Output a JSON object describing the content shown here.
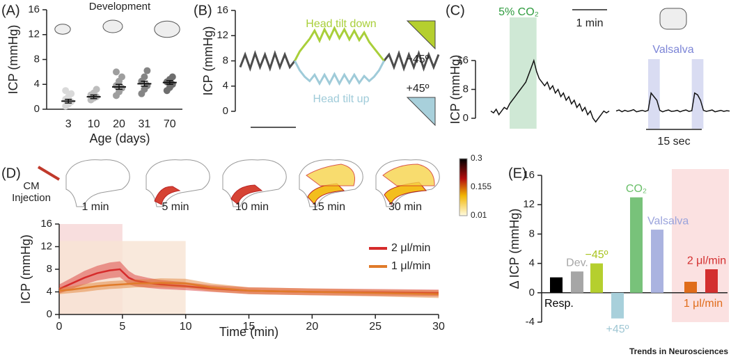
{
  "chart_data": [
    {
      "type": "dot",
      "panel": "(A)",
      "title": "Development",
      "xlabel": "Age (days)",
      "ylabel": "ICP (mmHg)",
      "categories": [
        "3",
        "10",
        "20",
        "31",
        "70"
      ],
      "values": [
        1.3,
        2.0,
        3.6,
        4.1,
        4.3
      ],
      "errors": [
        0.3,
        0.3,
        0.4,
        0.4,
        0.3
      ],
      "points": [
        [
          0.5,
          0.8,
          1.2,
          1.6,
          2.0,
          2.5,
          3.0
        ],
        [
          1.5,
          1.8,
          2.0,
          2.3,
          2.6,
          3.2
        ],
        [
          2.2,
          2.8,
          3.4,
          3.8,
          4.5,
          5.2,
          6.0
        ],
        [
          2.5,
          3.2,
          3.8,
          4.5,
          5.2,
          6.2
        ],
        [
          3.0,
          3.5,
          4.0,
          4.4,
          4.8,
          5.2
        ]
      ],
      "point_colors": [
        "#d9d9d9",
        "#bdbdbd",
        "#9e9e9e",
        "#858585",
        "#6e6e6e"
      ],
      "ylim": [
        0,
        16
      ],
      "yticks": [
        0,
        4,
        8,
        12,
        16
      ]
    },
    {
      "type": "trace",
      "panel": "(B)",
      "ylabel": "ICP (mmHg)",
      "ylim": [
        0,
        16
      ],
      "yticks": [
        0,
        4,
        8,
        12,
        16
      ],
      "series": [
        {
          "color": "#4d4d4d",
          "values": [
            7,
            9,
            6.8,
            9.2,
            7,
            9,
            6.8,
            9.2,
            7,
            9,
            7,
            8,
            null,
            null,
            null,
            null,
            null,
            null,
            null,
            null,
            null,
            null,
            null,
            null,
            null,
            null,
            null,
            null,
            null,
            8,
            9,
            7,
            9.2,
            6.8,
            9,
            7,
            9.2,
            6.8,
            9,
            7,
            9
          ]
        },
        {
          "name": "Head tilt down",
          "color": "#a9cf3a",
          "values": [
            null,
            null,
            null,
            null,
            null,
            null,
            null,
            null,
            null,
            null,
            null,
            8,
            9.5,
            10.5,
            11.5,
            12.8,
            11.2,
            13,
            11.5,
            13.2,
            11.6,
            13,
            11.4,
            12.8,
            11.3,
            12.5,
            11,
            10,
            9,
            8,
            null,
            null,
            null,
            null,
            null,
            null,
            null,
            null,
            null,
            null,
            null
          ]
        },
        {
          "name": "Head tilt up",
          "color": "#9fcbd9",
          "values": [
            null,
            null,
            null,
            null,
            null,
            null,
            null,
            null,
            null,
            null,
            null,
            8,
            6.5,
            5.5,
            4.8,
            5.8,
            4.4,
            5.8,
            4.4,
            5.9,
            4.4,
            5.8,
            4.5,
            5.8,
            4.5,
            5.6,
            4.8,
            5.5,
            6.5,
            8,
            null,
            null,
            null,
            null,
            null,
            null,
            null,
            null,
            null,
            null,
            null
          ]
        }
      ],
      "annotations": [
        "−45º",
        "+45º"
      ]
    },
    {
      "type": "trace",
      "panel": "(C)",
      "ylabel": "ICP (mmHg)",
      "ylim": [
        0,
        16
      ],
      "yticks": [
        0,
        8,
        16
      ],
      "series": [
        {
          "name": "5% CO₂",
          "color": "#111111",
          "label_color": "#2e9b3e",
          "shade_color": "#cfe8d5",
          "shades": [
            [
              7,
              17
            ]
          ],
          "values": [
            2,
            1.5,
            2.5,
            1,
            2,
            3,
            2.5,
            4,
            5,
            6,
            7,
            8,
            9,
            10,
            12,
            14,
            16,
            13,
            11,
            10,
            9,
            10,
            8,
            9,
            7,
            8,
            6,
            7,
            5,
            6,
            4,
            5,
            3,
            4,
            2,
            3,
            1,
            2,
            0,
            -1,
            0,
            1,
            2,
            1.5,
            2
          ]
        },
        {
          "name": "Valsalva",
          "color": "#111111",
          "label_color": "#7b84d6",
          "shade_color": "#d9dcf2",
          "shades": [
            [
              11,
              15
            ],
            [
              26,
              30
            ]
          ],
          "values": [
            2,
            2.3,
            1.8,
            2.2,
            1.9,
            2.1,
            2.4,
            1.8,
            2,
            2.2,
            1.9,
            2.2,
            7,
            6,
            5,
            2.2,
            1.8,
            2.1,
            2.3,
            1.9,
            2,
            2.2,
            1.8,
            2.1,
            2.3,
            1.9,
            2.1,
            7,
            6.5,
            5,
            2.2,
            1.9,
            2.1,
            2.3,
            1.8,
            2,
            2.2,
            1.9,
            2.1,
            2
          ]
        }
      ],
      "scalebars": [
        "1 min",
        "15 sec"
      ]
    },
    {
      "type": "line",
      "panel": "(D)",
      "xlabel": "Time (min)",
      "ylabel": "ICP (mmHg)",
      "images": [
        "1 min",
        "5 min",
        "10 min",
        "15 min",
        "30 min"
      ],
      "injection_label": [
        "CM",
        "Injection"
      ],
      "colorbar_ticks": [
        0.3,
        0.155,
        0.01
      ],
      "xlim": [
        0,
        30
      ],
      "xticks": [
        0,
        5,
        10,
        15,
        20,
        25,
        30
      ],
      "ylim": [
        0,
        16
      ],
      "yticks": [
        0,
        4,
        8,
        12,
        16
      ],
      "shades": [
        {
          "xlim": [
            0,
            5
          ],
          "ylim": [
            0,
            16
          ],
          "color": "#f6d6d6"
        },
        {
          "xlim": [
            0,
            10
          ],
          "ylim": [
            0,
            13
          ],
          "color": "#f8e3d3"
        }
      ],
      "x": [
        0,
        1,
        2,
        3,
        4,
        4.8,
        5.5,
        6,
        7,
        8,
        10,
        12,
        15,
        20,
        25,
        30
      ],
      "series": [
        {
          "name": "2 μl/min",
          "color": "#d62b2b",
          "values": [
            4.5,
            5.5,
            6.5,
            7.3,
            7.8,
            8,
            6.5,
            6,
            5.6,
            5.3,
            5,
            4.6,
            4.2,
            4,
            3.9,
            3.8
          ],
          "errors": [
            0.8,
            1,
            1.2,
            1.3,
            1.4,
            1.4,
            1.2,
            1,
            0.9,
            0.8,
            0.7,
            0.6,
            0.6,
            0.6,
            0.6,
            0.6
          ]
        },
        {
          "name": "1 μl/min",
          "color": "#e07b2a",
          "values": [
            4.2,
            4.4,
            4.7,
            5,
            5.2,
            5.3,
            5.4,
            5.5,
            5.5,
            5.6,
            5.5,
            4.8,
            4.2,
            4,
            3.8,
            3.6
          ],
          "errors": [
            0.6,
            0.6,
            0.7,
            0.7,
            0.7,
            0.7,
            0.7,
            0.7,
            0.7,
            0.8,
            0.8,
            0.7,
            0.6,
            0.6,
            0.6,
            0.7
          ]
        }
      ]
    },
    {
      "type": "bar",
      "panel": "(E)",
      "ylabel": "Δ ICP (mmHg)",
      "categories": [
        "Resp.",
        "Dev.",
        "−45º",
        "+45º",
        "CO₂",
        "Valsalva",
        "1 μl/min",
        "2 μl/min"
      ],
      "values": [
        2.1,
        2.9,
        4.0,
        -3.5,
        13,
        8.6,
        1.5,
        3.2
      ],
      "colors": [
        "#000000",
        "#a6a6a6",
        "#b5cf2e",
        "#a8d0db",
        "#78c27a",
        "#aab3e0",
        "#e06c1a",
        "#d32f2f"
      ],
      "label_colors": [
        "#000000",
        "#a6a6a6",
        "#a9c41e",
        "#9ec6d3",
        "#6abf69",
        "#9aa3dc",
        "#e06c1a",
        "#d32f2f"
      ],
      "ylim": [
        -4,
        16
      ],
      "yticks": [
        -4,
        0,
        4,
        8,
        12,
        16
      ]
    }
  ],
  "footer": "Trends in Neurosciences"
}
